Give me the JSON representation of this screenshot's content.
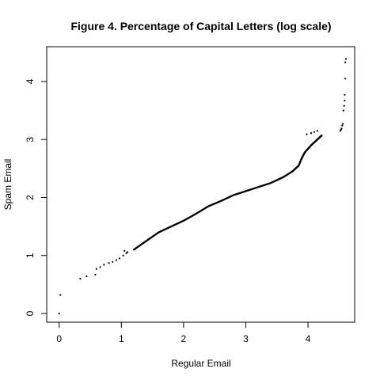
{
  "chart_data": {
    "type": "scatter",
    "title": "Figure 4. Percentage of Capital Letters (log scale)",
    "xlabel": "Regular Email",
    "ylabel": "Spam Email",
    "xlim": [
      -0.2,
      4.75
    ],
    "ylim": [
      -0.15,
      4.6
    ],
    "xticks": [
      0,
      1,
      2,
      3,
      4
    ],
    "yticks": [
      0,
      1,
      2,
      3,
      4
    ],
    "grid": false,
    "legend": "none",
    "point_color": "#000000",
    "curve": [
      [
        1.2,
        1.1
      ],
      [
        1.4,
        1.25
      ],
      [
        1.6,
        1.4
      ],
      [
        1.8,
        1.5
      ],
      [
        2.0,
        1.6
      ],
      [
        2.2,
        1.72
      ],
      [
        2.4,
        1.85
      ],
      [
        2.6,
        1.94
      ],
      [
        2.8,
        2.04
      ],
      [
        3.0,
        2.11
      ],
      [
        3.2,
        2.18
      ],
      [
        3.4,
        2.25
      ],
      [
        3.6,
        2.35
      ],
      [
        3.75,
        2.45
      ],
      [
        3.85,
        2.55
      ],
      [
        3.9,
        2.68
      ],
      [
        3.95,
        2.78
      ],
      [
        4.05,
        2.9
      ],
      [
        4.15,
        3.0
      ],
      [
        4.22,
        3.07
      ]
    ],
    "points": [
      [
        0.0,
        0.0
      ],
      [
        0.02,
        0.32
      ],
      [
        0.34,
        0.6
      ],
      [
        0.44,
        0.64
      ],
      [
        0.58,
        0.67
      ],
      [
        0.6,
        0.77
      ],
      [
        0.66,
        0.8
      ],
      [
        0.72,
        0.84
      ],
      [
        0.8,
        0.87
      ],
      [
        0.86,
        0.89
      ],
      [
        0.92,
        0.92
      ],
      [
        0.97,
        0.95
      ],
      [
        1.03,
        1.0
      ],
      [
        1.08,
        1.04
      ],
      [
        1.1,
        1.06
      ],
      [
        1.05,
        1.08
      ],
      [
        3.98,
        3.09
      ],
      [
        4.05,
        3.11
      ],
      [
        4.1,
        3.13
      ],
      [
        4.15,
        3.15
      ],
      [
        4.52,
        3.15
      ],
      [
        4.53,
        3.17
      ],
      [
        4.54,
        3.19
      ],
      [
        4.55,
        3.24
      ],
      [
        4.56,
        3.27
      ],
      [
        4.57,
        3.5
      ],
      [
        4.58,
        3.58
      ],
      [
        4.59,
        3.67
      ],
      [
        4.59,
        3.77
      ],
      [
        4.6,
        4.05
      ],
      [
        4.6,
        4.33
      ],
      [
        4.61,
        4.39
      ]
    ]
  }
}
